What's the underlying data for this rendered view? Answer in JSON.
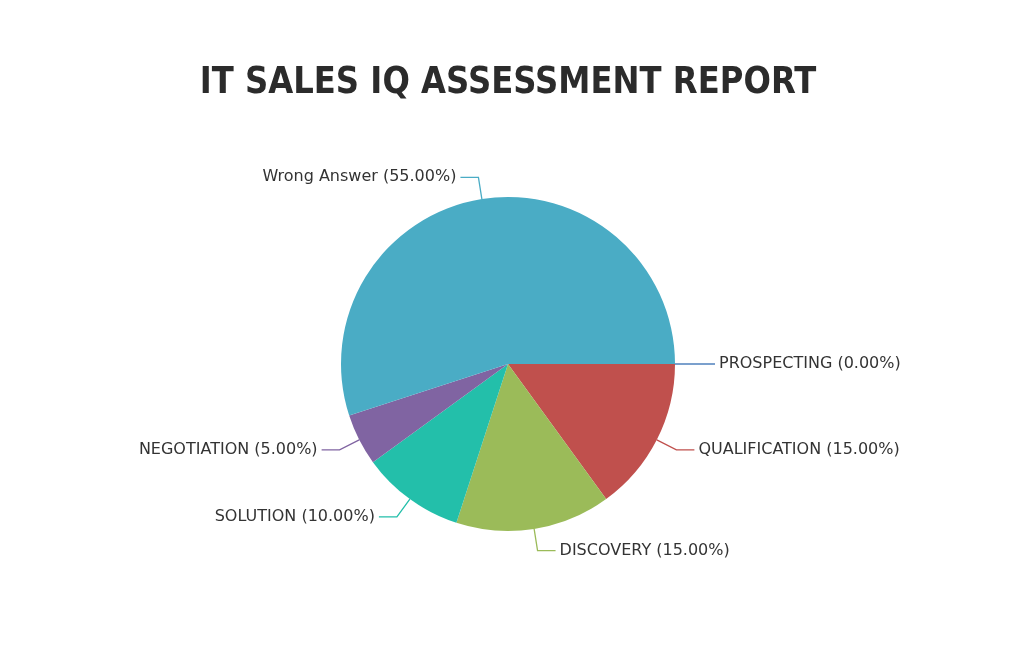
{
  "chart_data": {
    "type": "pie",
    "title": "IT SALES IQ ASSESSMENT REPORT",
    "categories": [
      "PROSPECTING",
      "QUALIFICATION",
      "DISCOVERY",
      "SOLUTION",
      "NEGOTIATION",
      "Wrong Answer"
    ],
    "values": [
      0,
      15,
      15,
      10,
      5,
      55
    ],
    "colors": [
      "#4f81bc",
      "#c0504d",
      "#9bbb59",
      "#23bfaa",
      "#8064a2",
      "#4aacc5"
    ],
    "value_labels": [
      "(0.00%)",
      "(15.00%)",
      "(15.00%)",
      "(10.00%)",
      "(5.00%)",
      "(55.00%)"
    ]
  }
}
